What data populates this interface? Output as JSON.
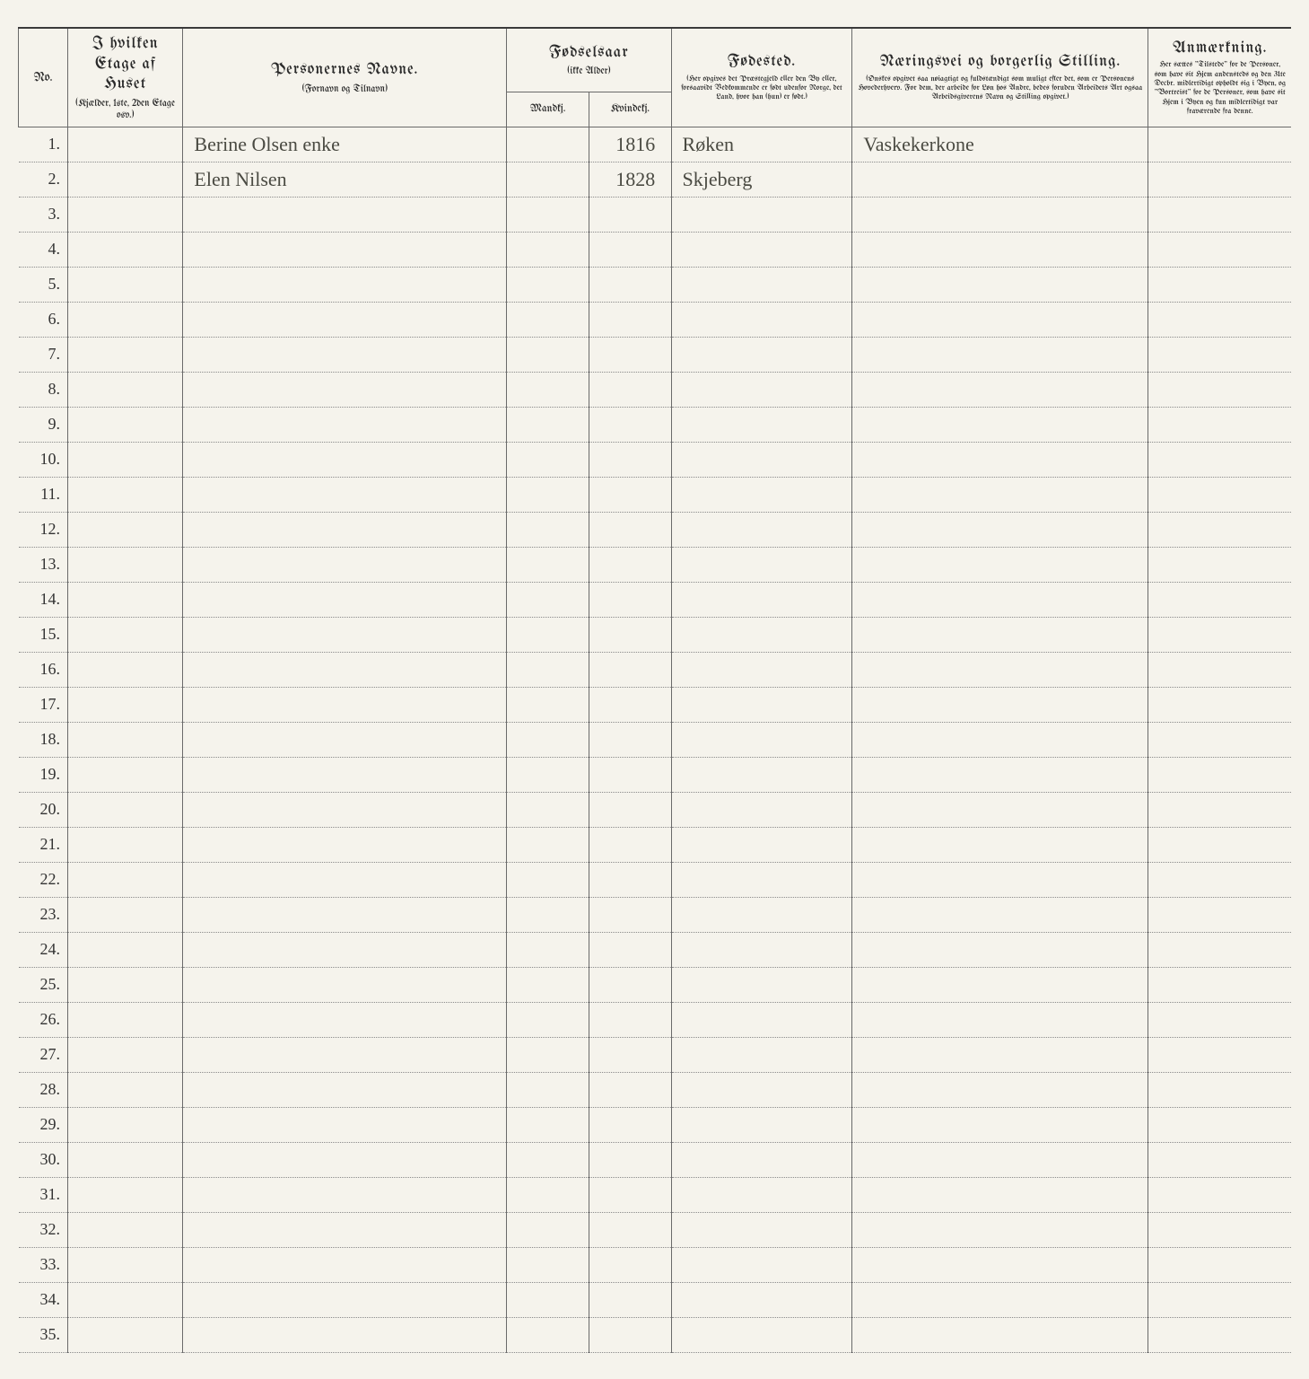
{
  "page": {
    "background_color": "#f5f3ec",
    "text_color": "#2a2a2a",
    "rule_color": "#3a3a3a",
    "grid_color": "#6a6a6a",
    "dotted_color": "#8a8a8a",
    "handwriting_color": "#4a4a42"
  },
  "headers": {
    "no": "No.",
    "etage_main": "I hvilken Etage af Huset",
    "etage_sub": "(Kjælder, 1ste, 2den Etage osv.)",
    "navn_main": "Personernes Navne.",
    "navn_sub": "(Fornavn og Tilnavn)",
    "fodsaar_main": "Fødselsaar",
    "fodsaar_sub": "(ikke Alder)",
    "mandkj": "Mandkj.",
    "kvindekj": "Kvindekj.",
    "fodested_main": "Fødested.",
    "fodested_sub": "(Her opgives det Præstegjeld eller den By eller, forsaavidt Vedkommende er født udenfor Norge, det Land, hvor han (hun) er født.)",
    "naering_main": "Næringsvei og borgerlig Stilling.",
    "naering_sub": "(Ønskes opgivet saa nøiagtigt og fuldstændigt som muligt efter det, som er Personens Hovederhverv. For dem, der arbeide for Løn hos Andre, bedes foruden Arbeidets Art ogsaa Arbeidsgiverens Navn og Stilling opgivet.)",
    "anm_main": "Anmærkning.",
    "anm_sub": "Her sættes \"Tilstede\" for de Personer, som have sit Hjem andensteds og den 31te Decbr. midlertidigt opholdt sig i Byen, og \"Bortreist\" for de Personer, som have sit Hjem i Byen og kun midlertidigt var fraværende fra denne."
  },
  "rows": [
    {
      "no": "1.",
      "navn": "Berine Olsen   enke",
      "mandkj": "",
      "kvindekj": "1816",
      "fodested": "Røken",
      "naering": "Vaskekerkone",
      "anm": ""
    },
    {
      "no": "2.",
      "navn": "Elen Nilsen",
      "mandkj": "",
      "kvindekj": "1828",
      "fodested": "Skjeberg",
      "naering": "",
      "anm": ""
    },
    {
      "no": "3."
    },
    {
      "no": "4."
    },
    {
      "no": "5."
    },
    {
      "no": "6."
    },
    {
      "no": "7."
    },
    {
      "no": "8."
    },
    {
      "no": "9."
    },
    {
      "no": "10."
    },
    {
      "no": "11."
    },
    {
      "no": "12."
    },
    {
      "no": "13."
    },
    {
      "no": "14."
    },
    {
      "no": "15."
    },
    {
      "no": "16."
    },
    {
      "no": "17."
    },
    {
      "no": "18."
    },
    {
      "no": "19."
    },
    {
      "no": "20."
    },
    {
      "no": "21."
    },
    {
      "no": "22."
    },
    {
      "no": "23."
    },
    {
      "no": "24."
    },
    {
      "no": "25."
    },
    {
      "no": "26."
    },
    {
      "no": "27."
    },
    {
      "no": "28."
    },
    {
      "no": "29."
    },
    {
      "no": "30."
    },
    {
      "no": "31."
    },
    {
      "no": "32."
    },
    {
      "no": "33."
    },
    {
      "no": "34."
    },
    {
      "no": "35."
    }
  ]
}
